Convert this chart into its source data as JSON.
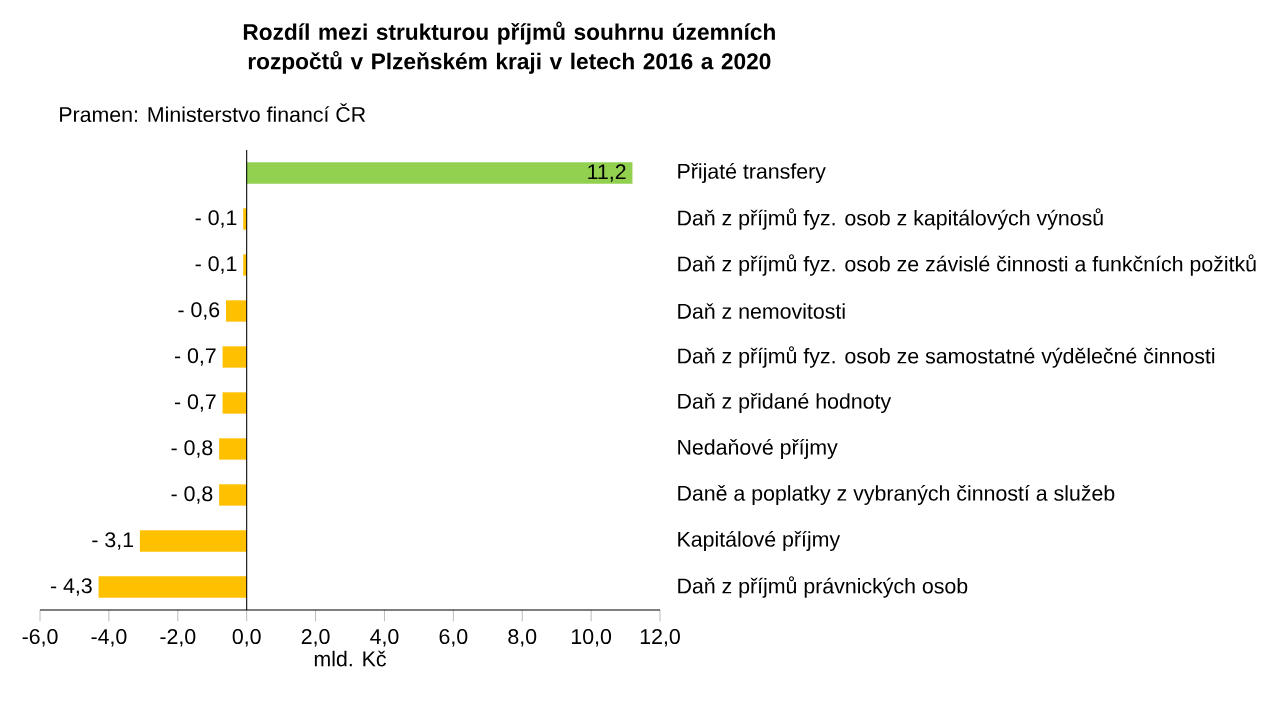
{
  "chart_data": {
    "type": "bar",
    "orientation": "horizontal",
    "title": "Rozdíl mezi strukturou  příjmů souhrnu  územních rozpočtů v Plzeňském kraji v letech 2016  a 2020",
    "annotations": [
      "Pramen: Ministerstvo financí ČR"
    ],
    "xlabel": "mld. Kč",
    "categories": [
      "Přijaté transfery",
      "Daň z příjmů fyz. osob z kapitálových výnosů",
      "Daň z příjmů fyz. osob ze závislé činnosti a funkčních požitků",
      "Daň z nemovitosti",
      "Daň z příjmů fyz. osob ze samostatné výdělečné činnosti",
      "Daň z přidané hodnoty",
      "Nedaňové příjmy",
      "Daně a poplatky z vybraných činností a služeb",
      "Kapitálové příjmy",
      "Daň z příjmů právnických osob"
    ],
    "values": [
      11.2,
      -0.1,
      -0.1,
      -0.6,
      -0.7,
      -0.7,
      -0.8,
      -0.8,
      -3.1,
      -4.3
    ],
    "value_labels": [
      "11,2",
      "- 0,1",
      "- 0,1",
      "- 0,6",
      "- 0,7",
      "- 0,7",
      "- 0,8",
      "- 0,8",
      "- 3,1",
      "- 4,3"
    ],
    "colors": [
      "#92d050",
      "#ffc000",
      "#ffc000",
      "#ffc000",
      "#ffc000",
      "#ffc000",
      "#ffc000",
      "#ffc000",
      "#ffc000",
      "#ffc000"
    ],
    "xlim": [
      -6,
      12
    ],
    "xticks": [
      {
        "value": -6,
        "label": "-6,0"
      },
      {
        "value": -4,
        "label": "-4,0"
      },
      {
        "value": -2,
        "label": "-2,0"
      },
      {
        "value": 0,
        "label": "0,0"
      },
      {
        "value": 2,
        "label": "2,0"
      },
      {
        "value": 4,
        "label": "4,0"
      },
      {
        "value": 6,
        "label": "6,0"
      },
      {
        "value": 8,
        "label": "8,0"
      },
      {
        "value": 10,
        "label": "10,0"
      },
      {
        "value": 12,
        "label": "12,0"
      }
    ]
  }
}
